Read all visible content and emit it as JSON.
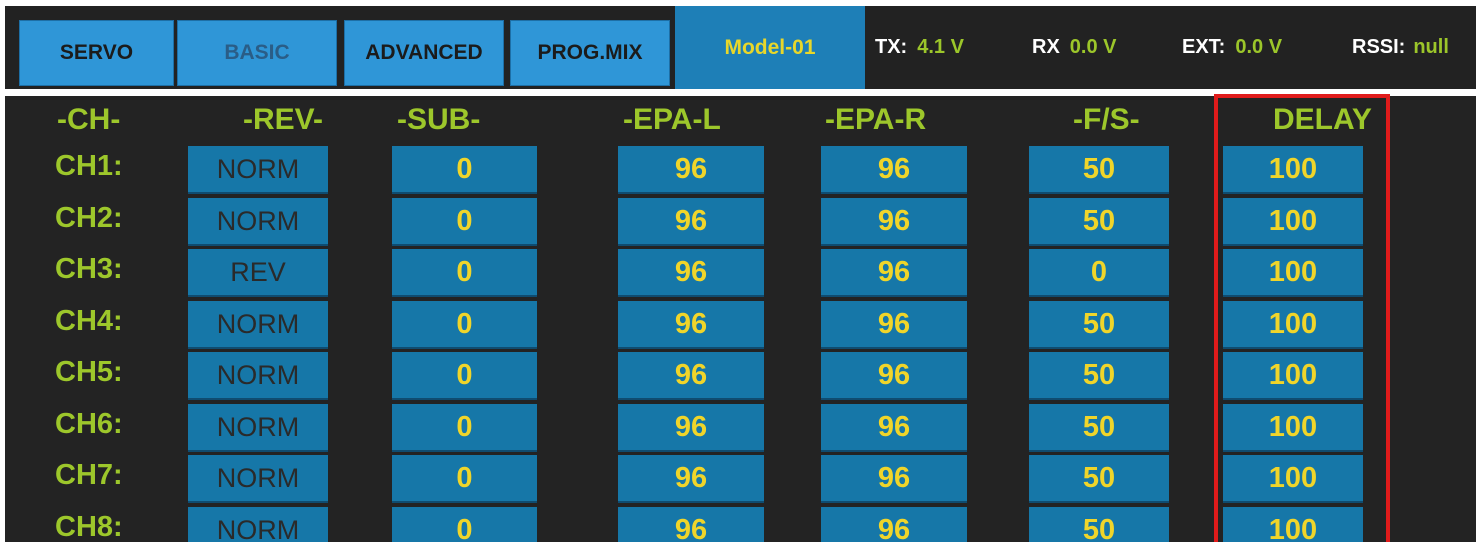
{
  "tabs": [
    {
      "label": "SERVO",
      "active": true
    },
    {
      "label": "BASIC",
      "active": false
    },
    {
      "label": "ADVANCED",
      "active": true
    },
    {
      "label": "PROG.MIX",
      "active": true
    }
  ],
  "model": "Model-01",
  "status": {
    "tx": {
      "label": "TX:",
      "value": "4.1 V"
    },
    "rx": {
      "label": "RX",
      "value": "0.0 V"
    },
    "ext": {
      "label": "EXT:",
      "value": "0.0 V"
    },
    "rssi": {
      "label": "RSSI:",
      "value": "null"
    }
  },
  "headers": [
    "-CH-",
    "-REV-",
    "-SUB-",
    "-EPA-L",
    "-EPA-R",
    "-F/S-",
    "DELAY"
  ],
  "rows": [
    {
      "ch": "CH1:",
      "rev": "NORM",
      "sub": "0",
      "epal": "96",
      "epar": "96",
      "fs": "50",
      "delay": "100"
    },
    {
      "ch": "CH2:",
      "rev": "NORM",
      "sub": "0",
      "epal": "96",
      "epar": "96",
      "fs": "50",
      "delay": "100"
    },
    {
      "ch": "CH3:",
      "rev": "REV",
      "sub": "0",
      "epal": "96",
      "epar": "96",
      "fs": "0",
      "delay": "100"
    },
    {
      "ch": "CH4:",
      "rev": "NORM",
      "sub": "0",
      "epal": "96",
      "epar": "96",
      "fs": "50",
      "delay": "100"
    },
    {
      "ch": "CH5:",
      "rev": "NORM",
      "sub": "0",
      "epal": "96",
      "epar": "96",
      "fs": "50",
      "delay": "100"
    },
    {
      "ch": "CH6:",
      "rev": "NORM",
      "sub": "0",
      "epal": "96",
      "epar": "96",
      "fs": "50",
      "delay": "100"
    },
    {
      "ch": "CH7:",
      "rev": "NORM",
      "sub": "0",
      "epal": "96",
      "epar": "96",
      "fs": "50",
      "delay": "100"
    },
    {
      "ch": "CH8:",
      "rev": "NORM",
      "sub": "0",
      "epal": "96",
      "epar": "96",
      "fs": "50",
      "delay": "100"
    }
  ],
  "colors": {
    "accent_green": "#9dc72b",
    "value_yellow": "#f0d52a",
    "cell_blue": "#1677a8",
    "tab_blue": "#2f96d7",
    "highlight_red": "#e01b1b"
  }
}
